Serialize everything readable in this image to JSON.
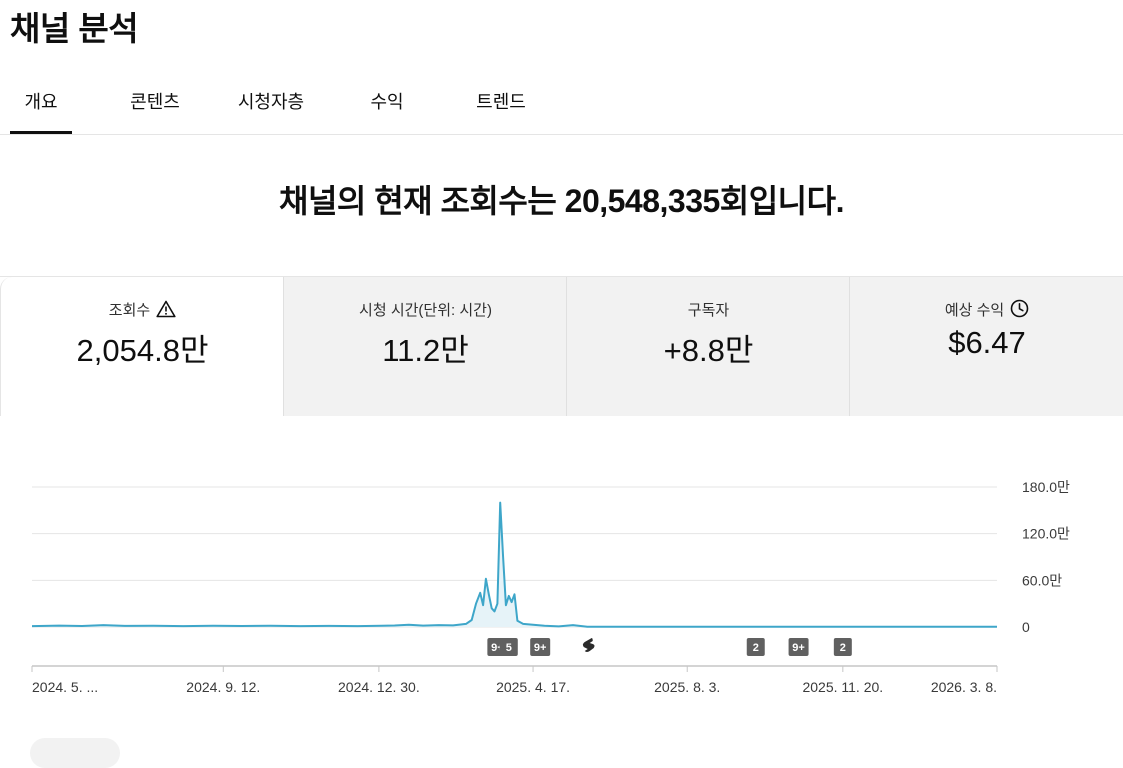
{
  "page": {
    "title": "채널 분석"
  },
  "tabs": [
    {
      "label": "개요",
      "active": true
    },
    {
      "label": "콘텐츠",
      "active": false
    },
    {
      "label": "시청자층",
      "active": false
    },
    {
      "label": "수익",
      "active": false
    },
    {
      "label": "트렌드",
      "active": false
    }
  ],
  "headline": "채널의 현재 조회수는 20,548,335회입니다.",
  "metrics": [
    {
      "label": "조회수",
      "value": "2,054.8만",
      "icon": "warning-triangle-icon",
      "selected": true
    },
    {
      "label": "시청 시간(단위: 시간)",
      "value": "11.2만",
      "selected": false
    },
    {
      "label": "구독자",
      "value": "+8.8만",
      "selected": false
    },
    {
      "label": "예상 수익",
      "value": "$6.47",
      "icon": "clock-icon",
      "selected": false
    }
  ],
  "colors": {
    "line": "#3ea6c9",
    "fill": "#e6f3f8",
    "grid": "#e5e5e5",
    "marker_bg": "#606060",
    "text": "#0f0f0f"
  },
  "chart_data": {
    "type": "line",
    "series": [
      {
        "points": [
          [
            "2024-05-01",
            1.2
          ],
          [
            "2024-05-20",
            1.8
          ],
          [
            "2024-06-05",
            1.3
          ],
          [
            "2024-06-20",
            2.5
          ],
          [
            "2024-07-05",
            1.4
          ],
          [
            "2024-07-25",
            1.6
          ],
          [
            "2024-08-15",
            1.2
          ],
          [
            "2024-09-05",
            1.5
          ],
          [
            "2024-09-25",
            1.3
          ],
          [
            "2024-10-15",
            1.6
          ],
          [
            "2024-11-05",
            1.2
          ],
          [
            "2024-11-25",
            1.4
          ],
          [
            "2024-12-15",
            1.1
          ],
          [
            "2025-01-01",
            1.6
          ],
          [
            "2025-01-10",
            1.9
          ],
          [
            "2025-01-20",
            2.8
          ],
          [
            "2025-01-30",
            1.8
          ],
          [
            "2025-02-10",
            2.5
          ],
          [
            "2025-02-20",
            2.0
          ],
          [
            "2025-03-01",
            4.0
          ],
          [
            "2025-03-05",
            9.0
          ],
          [
            "2025-03-08",
            30.0
          ],
          [
            "2025-03-11",
            44.0
          ],
          [
            "2025-03-13",
            28.0
          ],
          [
            "2025-03-15",
            62.0
          ],
          [
            "2025-03-17",
            42.0
          ],
          [
            "2025-03-19",
            24.0
          ],
          [
            "2025-03-21",
            20.0
          ],
          [
            "2025-03-23",
            30.0
          ],
          [
            "2025-03-25",
            160.0
          ],
          [
            "2025-03-27",
            90.0
          ],
          [
            "2025-03-29",
            28.0
          ],
          [
            "2025-03-31",
            40.0
          ],
          [
            "2025-04-02",
            32.0
          ],
          [
            "2025-04-04",
            42.0
          ],
          [
            "2025-04-06",
            8.0
          ],
          [
            "2025-04-10",
            4.0
          ],
          [
            "2025-04-17",
            3.0
          ],
          [
            "2025-04-25",
            1.5
          ],
          [
            "2025-05-05",
            0.8
          ],
          [
            "2025-05-15",
            2.5
          ],
          [
            "2025-05-25",
            0.3
          ],
          [
            "2025-07-01",
            0.2
          ],
          [
            "2025-09-01",
            0.2
          ],
          [
            "2025-11-01",
            0.2
          ],
          [
            "2026-01-01",
            0.2
          ],
          [
            "2026-03-08",
            0.2
          ]
        ]
      }
    ],
    "x_range": [
      "2024-05-01",
      "2026-03-08"
    ],
    "x_tick_labels": [
      "2024. 5. ...",
      "2024. 9. 12.",
      "2024. 12. 30.",
      "2025. 4. 17.",
      "2025. 8. 3.",
      "2025. 11. 20.",
      "2026. 3. 8."
    ],
    "x_ticks": [
      "2024-05-01",
      "2024-09-12",
      "2024-12-30",
      "2025-04-17",
      "2025-08-03",
      "2025-11-20",
      "2026-03-08"
    ],
    "y_unit": "만",
    "ylim": [
      0,
      180
    ],
    "y_ticks": [
      0,
      60,
      120,
      180
    ],
    "y_tick_labels": [
      "0",
      "60.0만",
      "120.0만",
      "180.0만"
    ],
    "markers": [
      {
        "date": "2025-03-23",
        "label": "9+"
      },
      {
        "date": "2025-03-31",
        "label": "5"
      },
      {
        "date": "2025-04-22",
        "label": "9+"
      },
      {
        "date": "2025-05-26",
        "label": "",
        "icon": "shorts-icon"
      },
      {
        "date": "2025-09-20",
        "label": "2"
      },
      {
        "date": "2025-10-20",
        "label": "9+"
      },
      {
        "date": "2025-11-20",
        "label": "2"
      }
    ],
    "grid": true
  }
}
